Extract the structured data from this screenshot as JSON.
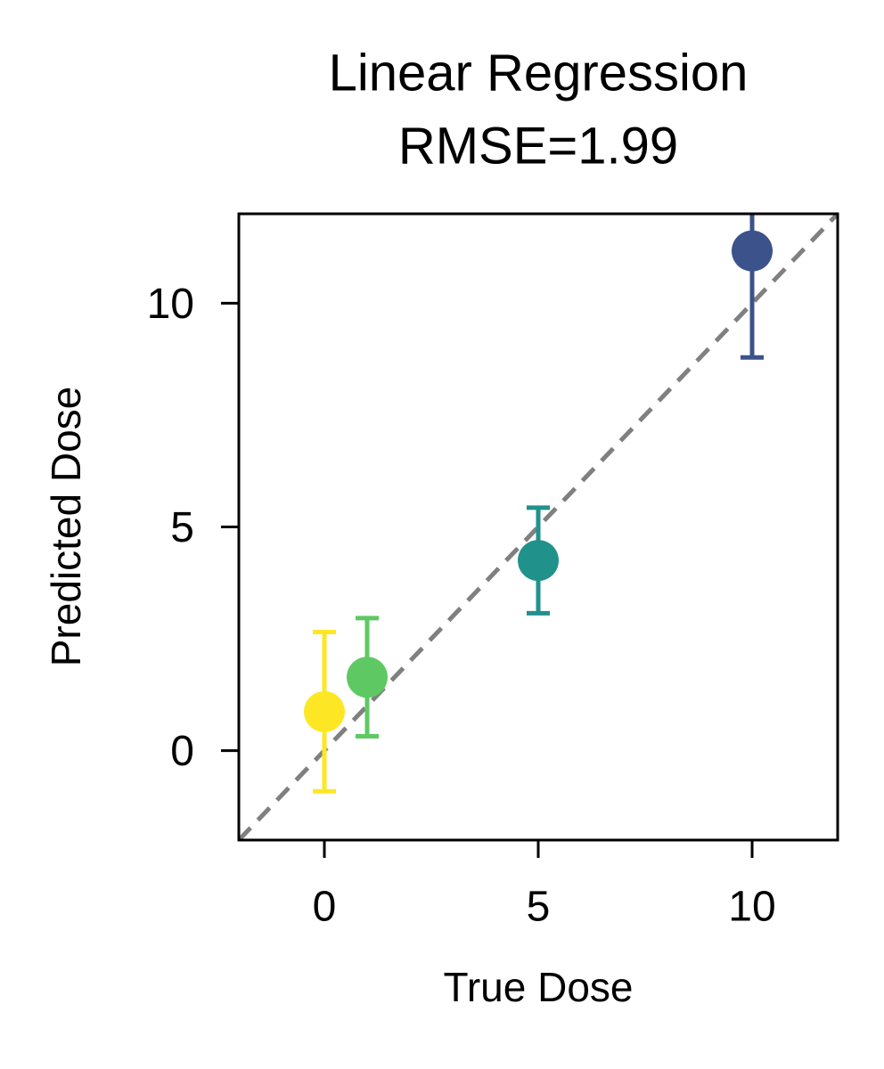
{
  "chart_data": {
    "type": "errorbar-scatter",
    "title": "Linear Regression",
    "subtitle": "RMSE=1.99",
    "x_label": "True Dose",
    "y_label": "Predicted Dose",
    "x": [
      0,
      1,
      5,
      10
    ],
    "values": [
      0.87,
      1.64,
      4.25,
      11.17
    ],
    "errors": [
      1.78,
      1.32,
      1.18,
      2.38
    ],
    "colors": [
      "#fde725",
      "#5ec962",
      "#21918c",
      "#3b528b"
    ],
    "xlim": [
      -2,
      12
    ],
    "ylim": [
      -2,
      12
    ],
    "xticks": [
      0,
      5,
      10
    ],
    "yticks": [
      0,
      5,
      10
    ],
    "identity_line": true,
    "identity_color": "#808080"
  }
}
